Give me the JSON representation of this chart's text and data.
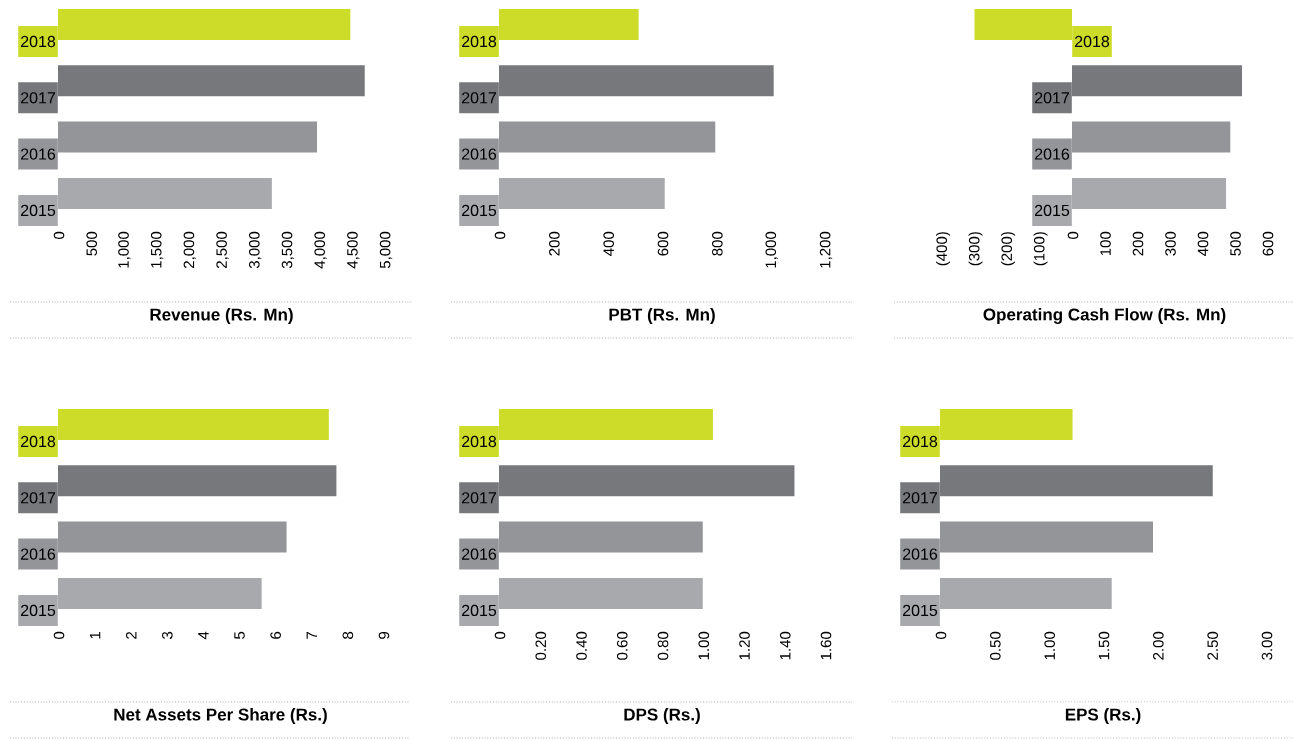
{
  "chart_data": [
    {
      "type": "bar",
      "orientation": "horizontal",
      "title": "Revenue (Rs. Mn)",
      "categories": [
        "2018",
        "2017",
        "2016",
        "2015"
      ],
      "values": [
        4470,
        4690,
        3960,
        3270
      ],
      "colors": [
        "#cddc29",
        "#77787b",
        "#939598",
        "#a7a9ac"
      ],
      "xlim": [
        0,
        5000
      ],
      "xticks": [
        0,
        500,
        {
          "value": 1000,
          "label": "1,000"
        },
        {
          "value": 1500,
          "label": "1,500"
        },
        {
          "value": 2000,
          "label": "2,000"
        },
        {
          "value": 2500,
          "label": "2,500"
        },
        {
          "value": 3000,
          "label": "3,000"
        },
        {
          "value": 3500,
          "label": "3,500"
        },
        {
          "value": 4000,
          "label": "4,000"
        },
        {
          "value": 4500,
          "label": "4,500"
        },
        {
          "value": 5000,
          "label": "5,000"
        }
      ]
    },
    {
      "type": "bar",
      "orientation": "horizontal",
      "title": "PBT (Rs. Mn)",
      "categories": [
        "2018",
        "2017",
        "2016",
        "2015"
      ],
      "values": [
        514,
        1011,
        796,
        610
      ],
      "colors": [
        "#cddc29",
        "#77787b",
        "#939598",
        "#a7a9ac"
      ],
      "xlim": [
        0,
        1200
      ],
      "xticks": [
        0,
        200,
        400,
        600,
        800,
        {
          "value": 1000,
          "label": "1,000"
        },
        {
          "value": 1200,
          "label": "1,200"
        }
      ]
    },
    {
      "type": "bar",
      "orientation": "horizontal",
      "title": "Operating Cash Flow (Rs. Mn)",
      "categories": [
        "2018",
        "2017",
        "2016",
        "2015"
      ],
      "values": [
        -300,
        523,
        487,
        474
      ],
      "colors": [
        "#cddc29",
        "#77787b",
        "#939598",
        "#a7a9ac"
      ],
      "xlim": [
        -400,
        600
      ],
      "xticks": [
        {
          "value": -400,
          "label": "(400)"
        },
        {
          "value": -300,
          "label": "(300)"
        },
        {
          "value": -200,
          "label": "(200)"
        },
        {
          "value": -100,
          "label": "(100)"
        },
        0,
        100,
        200,
        300,
        400,
        500,
        600
      ]
    },
    {
      "type": "bar",
      "orientation": "horizontal",
      "title": "Net Assets Per Share (Rs.)",
      "categories": [
        "2018",
        "2017",
        "2016",
        "2015"
      ],
      "values": [
        7.5,
        7.71,
        6.33,
        5.64
      ],
      "colors": [
        "#cddc29",
        "#77787b",
        "#939598",
        "#a7a9ac"
      ],
      "xlim": [
        0,
        9
      ],
      "xticks": [
        0,
        1,
        2,
        3,
        4,
        5,
        6,
        7,
        8,
        9
      ]
    },
    {
      "type": "bar",
      "orientation": "horizontal",
      "title": "DPS (Rs.)",
      "categories": [
        "2018",
        "2017",
        "2016",
        "2015"
      ],
      "values": [
        1.05,
        1.45,
        1.0,
        1.0
      ],
      "colors": [
        "#cddc29",
        "#77787b",
        "#939598",
        "#a7a9ac"
      ],
      "xlim": [
        0,
        1.6
      ],
      "xticks": [
        0,
        {
          "value": 0.2,
          "label": "0.20"
        },
        {
          "value": 0.4,
          "label": "0.40"
        },
        {
          "value": 0.6,
          "label": "0.60"
        },
        {
          "value": 0.8,
          "label": "0.80"
        },
        {
          "value": 1.0,
          "label": "1.00"
        },
        {
          "value": 1.2,
          "label": "1.20"
        },
        {
          "value": 1.4,
          "label": "1.40"
        },
        {
          "value": 1.6,
          "label": "1.60"
        }
      ]
    },
    {
      "type": "bar",
      "orientation": "horizontal",
      "title": "EPS (Rs.)",
      "categories": [
        "2018",
        "2017",
        "2016",
        "2015"
      ],
      "values": [
        1.22,
        2.51,
        1.96,
        1.58
      ],
      "colors": [
        "#cddc29",
        "#77787b",
        "#939598",
        "#a7a9ac"
      ],
      "xlim": [
        0,
        3.0
      ],
      "xticks": [
        0,
        {
          "value": 0.5,
          "label": "0.50"
        },
        {
          "value": 1.0,
          "label": "1.00"
        },
        {
          "value": 1.5,
          "label": "1.50"
        },
        {
          "value": 2.0,
          "label": "2.00"
        },
        {
          "value": 2.5,
          "label": "2.50"
        },
        {
          "value": 3.0,
          "label": "3.00"
        }
      ]
    }
  ]
}
